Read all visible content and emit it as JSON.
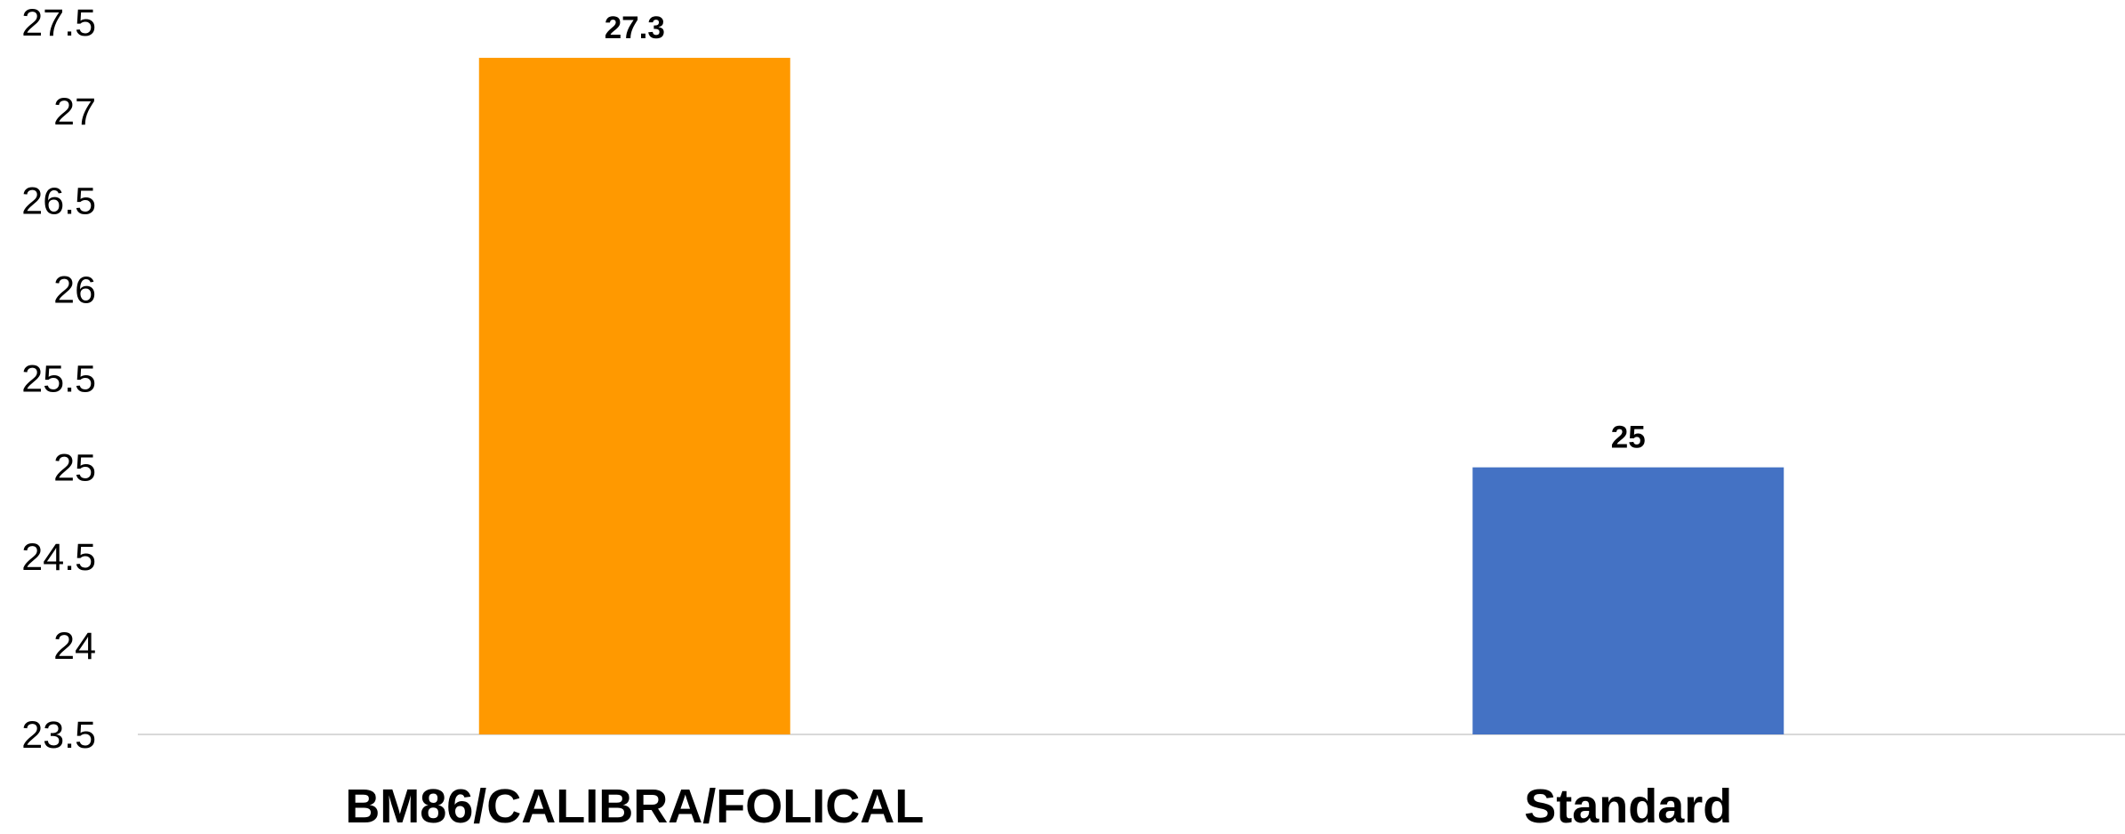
{
  "chart_data": {
    "type": "bar",
    "categories": [
      "BM86/CALIBRA/FOLICAL",
      "Standard"
    ],
    "values": [
      27.3,
      25
    ],
    "data_labels": [
      "27.3",
      "25"
    ],
    "colors": [
      "#FF9900",
      "#4472C4"
    ],
    "ylim": [
      23.5,
      27.5
    ],
    "yticks": [
      "23.5",
      "24",
      "24.5",
      "25",
      "25.5",
      "26",
      "26.5",
      "27",
      "27.5"
    ],
    "title": "",
    "xlabel": "",
    "ylabel": "",
    "grid": false,
    "legend": "none"
  }
}
